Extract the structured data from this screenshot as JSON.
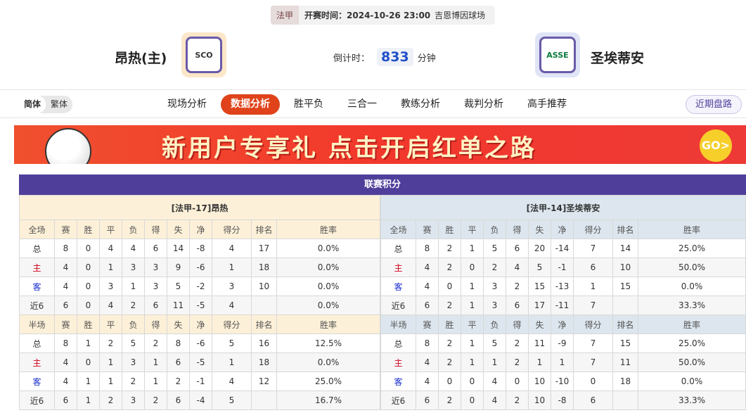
{
  "match": {
    "league": "法甲",
    "time_label": "开赛时间：2024-10-26 23:00",
    "venue": "吉恩博因球场",
    "countdown_label": "倒计时：",
    "countdown": "833",
    "countdown_unit": "分钟"
  },
  "home": {
    "name": "昂热(主)",
    "logo_text": "SCO"
  },
  "away": {
    "name": "圣埃蒂安",
    "logo_text": "ASSE"
  },
  "lang": [
    "简体",
    "繁体"
  ],
  "tabs": [
    "现场分析",
    "数据分析",
    "胜平负",
    "三合一",
    "教练分析",
    "裁判分析",
    "高手推荐"
  ],
  "active_tab": "数据分析",
  "recent_button": "近期盘路",
  "banner": {
    "text": "新用户专享礼 点击开启红单之路",
    "go": "GO>"
  },
  "standings": {
    "title": "联赛积分",
    "columns_full": [
      "全场",
      "赛",
      "胜",
      "平",
      "负",
      "得",
      "失",
      "净",
      "得分",
      "排名",
      "胜率"
    ],
    "columns_half": [
      "半场",
      "赛",
      "胜",
      "平",
      "负",
      "得",
      "失",
      "净",
      "得分",
      "排名",
      "胜率"
    ],
    "left": {
      "header": "[法甲-17]昂热",
      "full": [
        [
          "总",
          "8",
          "0",
          "4",
          "4",
          "6",
          "14",
          "-8",
          "4",
          "17",
          "0.0%"
        ],
        [
          "主",
          "4",
          "0",
          "1",
          "3",
          "3",
          "9",
          "-6",
          "1",
          "18",
          "0.0%"
        ],
        [
          "客",
          "4",
          "0",
          "3",
          "1",
          "3",
          "5",
          "-2",
          "3",
          "10",
          "0.0%"
        ],
        [
          "近6",
          "6",
          "0",
          "4",
          "2",
          "6",
          "11",
          "-5",
          "4",
          "",
          "0.0%"
        ]
      ],
      "half": [
        [
          "总",
          "8",
          "1",
          "2",
          "5",
          "2",
          "8",
          "-6",
          "5",
          "16",
          "12.5%"
        ],
        [
          "主",
          "4",
          "0",
          "1",
          "3",
          "1",
          "6",
          "-5",
          "1",
          "18",
          "0.0%"
        ],
        [
          "客",
          "4",
          "1",
          "1",
          "2",
          "1",
          "2",
          "-1",
          "4",
          "12",
          "25.0%"
        ],
        [
          "近6",
          "6",
          "1",
          "2",
          "3",
          "2",
          "6",
          "-4",
          "5",
          "",
          "16.7%"
        ]
      ]
    },
    "right": {
      "header": "[法甲-14]圣埃蒂安",
      "full": [
        [
          "总",
          "8",
          "2",
          "1",
          "5",
          "6",
          "20",
          "-14",
          "7",
          "14",
          "25.0%"
        ],
        [
          "主",
          "4",
          "2",
          "0",
          "2",
          "4",
          "5",
          "-1",
          "6",
          "10",
          "50.0%"
        ],
        [
          "客",
          "4",
          "0",
          "1",
          "3",
          "2",
          "15",
          "-13",
          "1",
          "15",
          "0.0%"
        ],
        [
          "近6",
          "6",
          "2",
          "1",
          "3",
          "6",
          "17",
          "-11",
          "7",
          "",
          "33.3%"
        ]
      ],
      "half": [
        [
          "总",
          "8",
          "2",
          "1",
          "5",
          "2",
          "11",
          "-9",
          "7",
          "15",
          "25.0%"
        ],
        [
          "主",
          "4",
          "2",
          "1",
          "1",
          "2",
          "1",
          "1",
          "7",
          "11",
          "50.0%"
        ],
        [
          "客",
          "4",
          "0",
          "0",
          "4",
          "0",
          "10",
          "-10",
          "0",
          "18",
          "0.0%"
        ],
        [
          "近6",
          "6",
          "2",
          "0",
          "4",
          "2",
          "10",
          "-8",
          "6",
          "",
          "33.3%"
        ]
      ]
    }
  }
}
